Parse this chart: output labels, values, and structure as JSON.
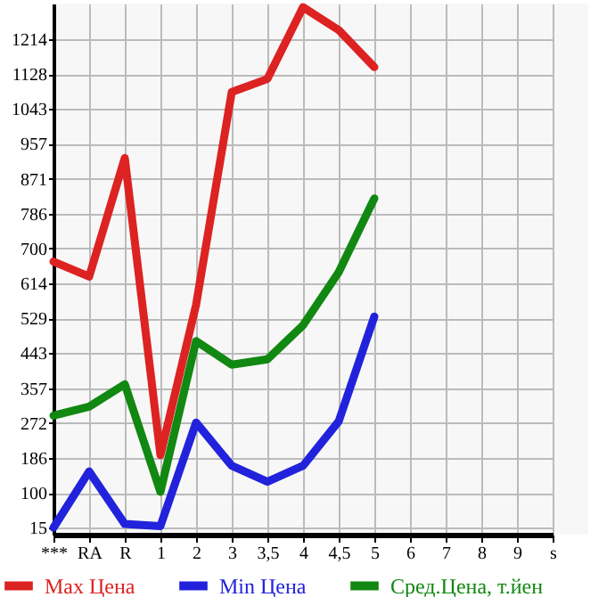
{
  "chart_data": {
    "type": "line",
    "categories": [
      "***",
      "RA",
      "R",
      "1",
      "2",
      "3",
      "3,5",
      "4",
      "4,5",
      "5",
      "6",
      "7",
      "8",
      "9",
      "s"
    ],
    "series": [
      {
        "name": "Max Цена",
        "color": "#dd2222",
        "values": [
          668,
          631,
          922,
          193,
          562,
          1084,
          1116,
          1292,
          1236,
          1145,
          null,
          null,
          null,
          null,
          null
        ]
      },
      {
        "name": "Min Цена",
        "color": "#2222dd",
        "values": [
          15,
          153,
          24,
          19,
          273,
          167,
          128,
          167,
          276,
          533,
          null,
          null,
          null,
          null,
          null
        ]
      },
      {
        "name": "Сред.Цена, т.йен",
        "color": "#118811",
        "values": [
          290,
          312,
          367,
          103,
          473,
          415,
          428,
          512,
          642,
          823,
          null,
          null,
          null,
          null,
          null
        ]
      }
    ],
    "ylim": [
      -2,
      1301
    ],
    "yticks": [
      15,
      100,
      186,
      272,
      357,
      443,
      529,
      614,
      700,
      786,
      871,
      957,
      1043,
      1128,
      1214
    ],
    "grid": true,
    "legend": "bottom",
    "marker": "none",
    "line_style": "solid"
  }
}
